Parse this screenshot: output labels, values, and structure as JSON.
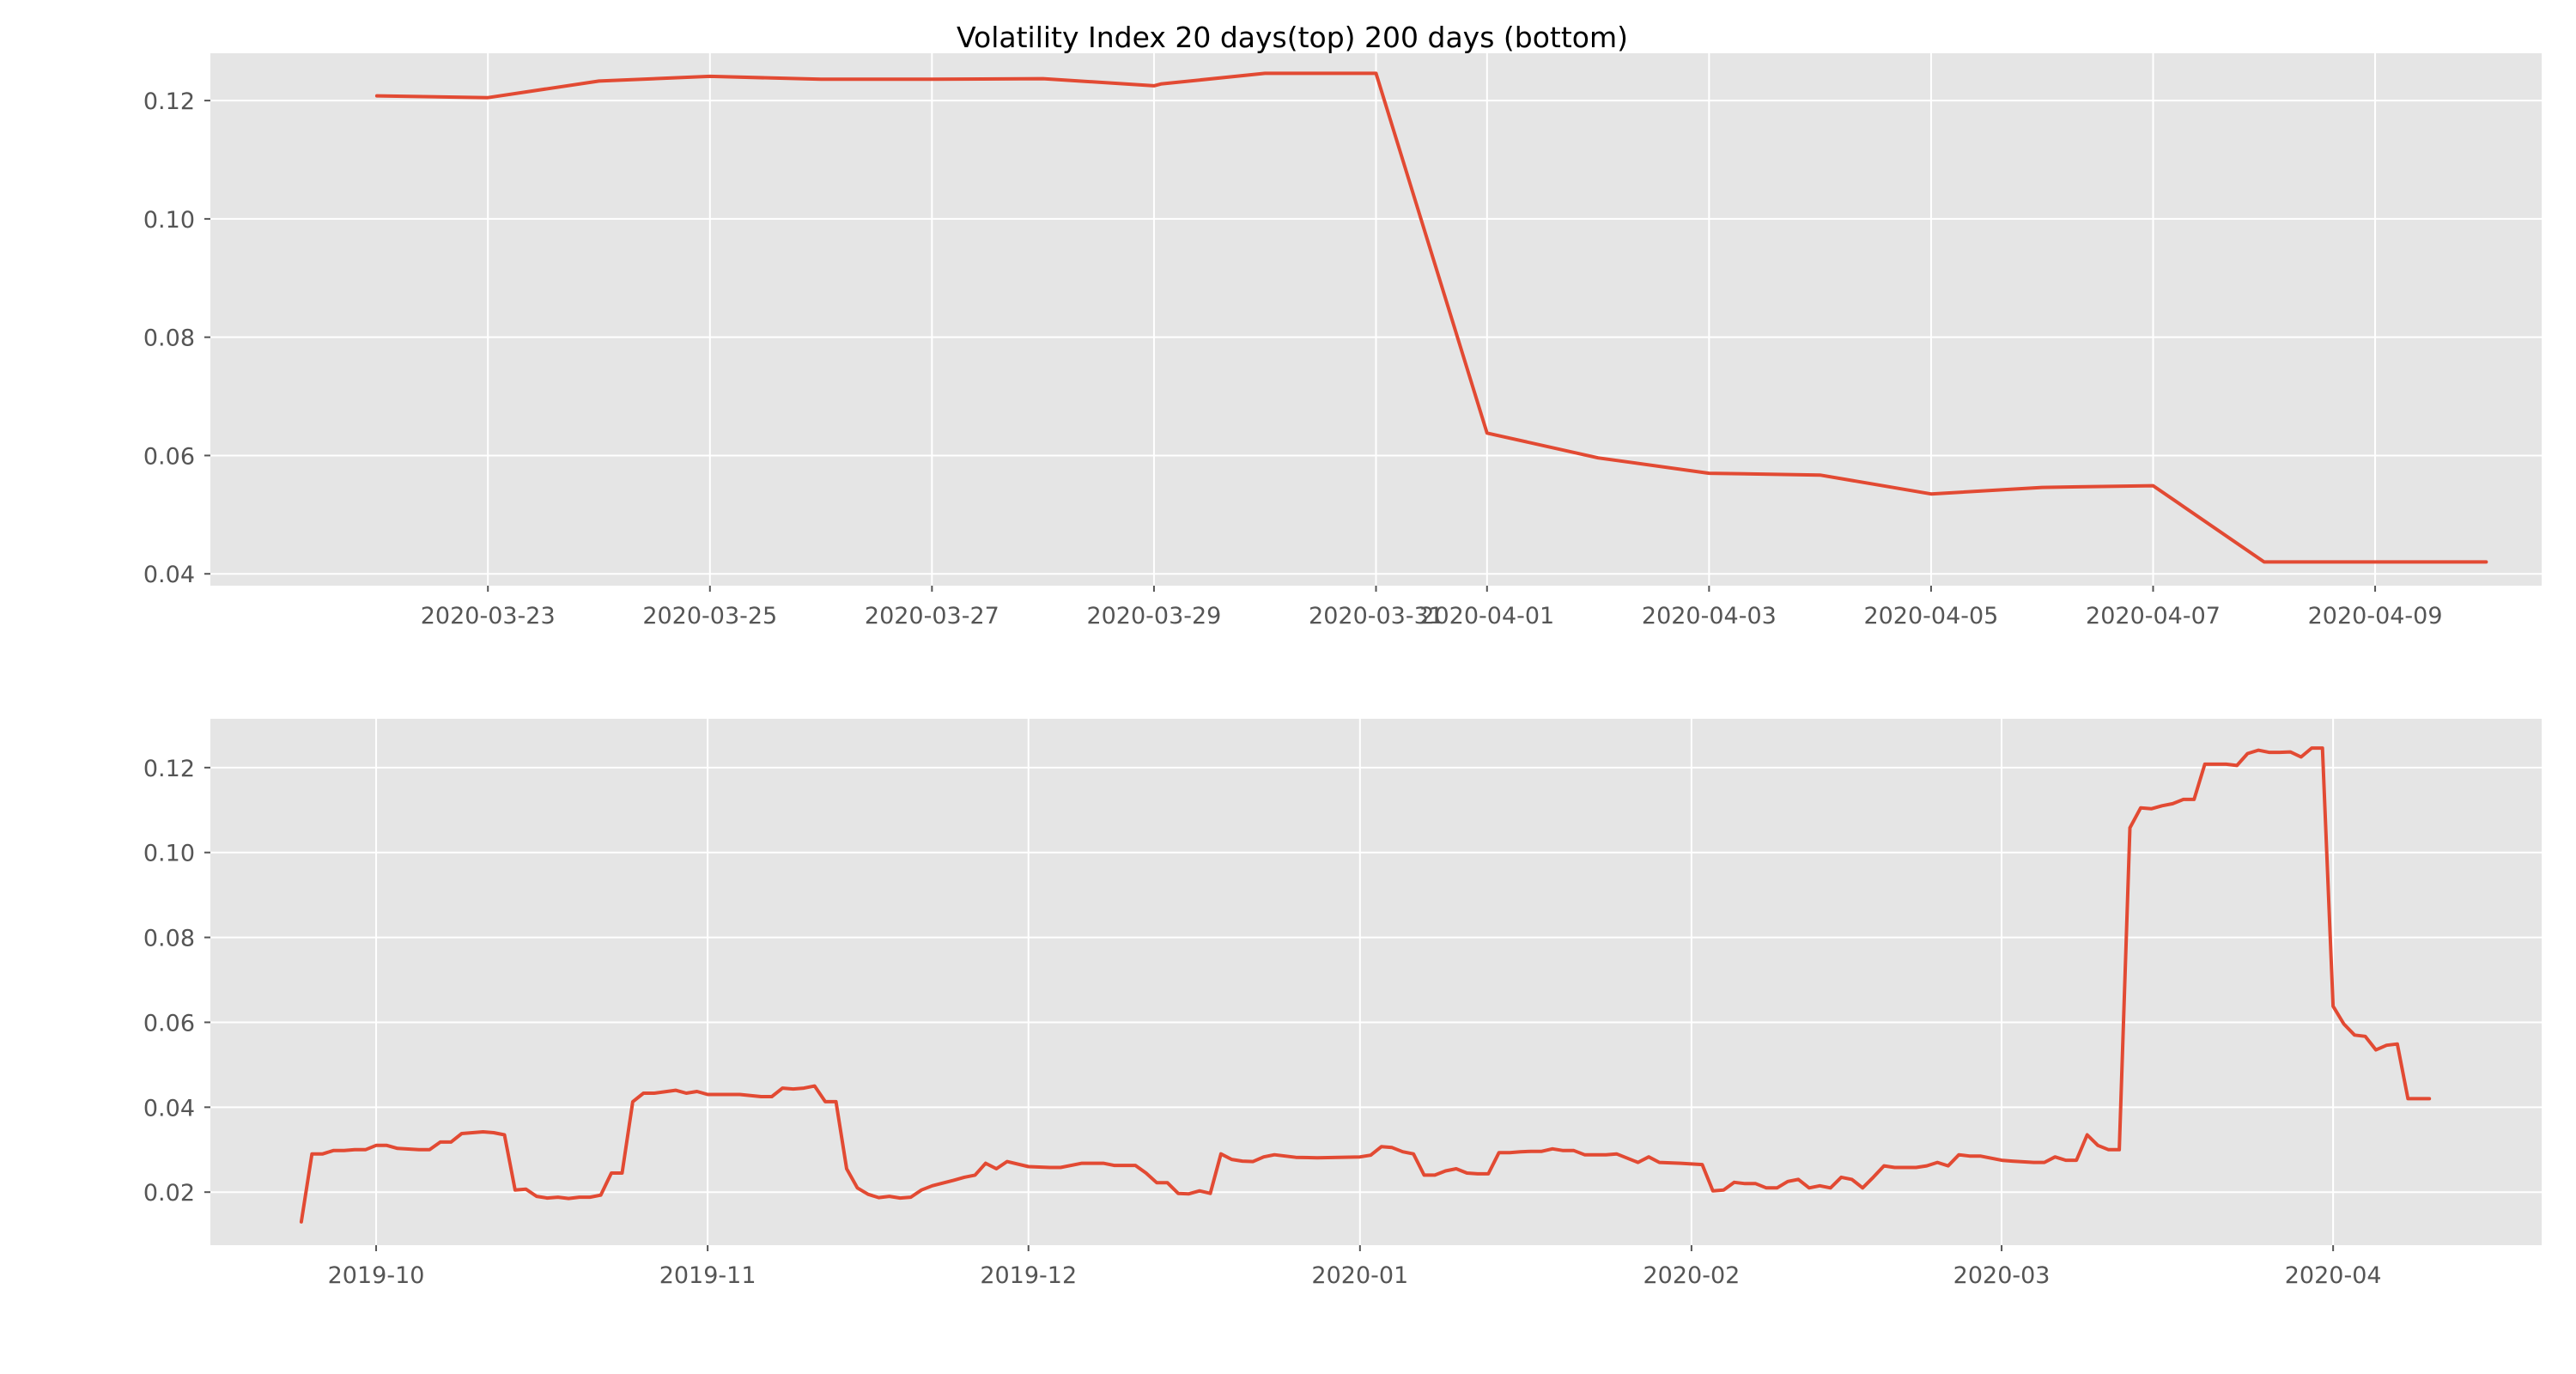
{
  "figure": {
    "title": "Volatility Index 20 days(top) 200 days (bottom)"
  },
  "colors": {
    "panel_background": "#e5e5e5",
    "grid": "#ffffff",
    "line": "#e24a33",
    "tick_text": "#555555"
  },
  "chart_data": [
    {
      "type": "line",
      "title": "",
      "xlabel": "",
      "ylabel": "",
      "grid": true,
      "legend": "none",
      "xlim": [
        "2020-03-20T12:00",
        "2020-04-10T12:00"
      ],
      "ylim": [
        0.038,
        0.128
      ],
      "x_ticks": [
        "2020-03-23",
        "2020-03-25",
        "2020-03-27",
        "2020-03-29",
        "2020-03-31",
        "2020-04-01",
        "2020-04-03",
        "2020-04-05",
        "2020-04-07",
        "2020-04-09"
      ],
      "y_ticks": [
        "0.04",
        "0.06",
        "0.08",
        "0.10",
        "0.12"
      ],
      "series": [
        {
          "x": [
            "2020-03-22",
            "2020-03-23",
            "2020-03-24",
            "2020-03-25",
            "2020-03-26",
            "2020-03-27",
            "2020-03-28",
            "2020-03-29",
            "2020-03-29T01:30",
            "2020-03-30",
            "2020-03-31",
            "2020-04-01",
            "2020-04-02",
            "2020-04-03",
            "2020-04-04",
            "2020-04-05",
            "2020-04-06",
            "2020-04-07",
            "2020-04-08",
            "2020-04-10"
          ],
          "y": [
            0.1208,
            0.1205,
            0.1233,
            0.1241,
            0.1236,
            0.1236,
            0.1237,
            0.1225,
            0.1228,
            0.1246,
            0.1246,
            0.0638,
            0.0596,
            0.057,
            0.0567,
            0.0535,
            0.0546,
            0.0549,
            0.042,
            0.042
          ]
        }
      ]
    },
    {
      "type": "line",
      "title": "",
      "xlabel": "",
      "ylabel": "",
      "grid": true,
      "legend": "none",
      "xlim": [
        "2019-09-15T12:00",
        "2020-04-20T12:00"
      ],
      "ylim": [
        0.0075,
        0.1315
      ],
      "x_ticks": [
        "2019-10",
        "2019-11",
        "2019-12",
        "2020-01",
        "2020-02",
        "2020-03",
        "2020-04"
      ],
      "x_tick_dates": [
        "2019-10-01",
        "2019-11-01",
        "2019-12-01",
        "2020-01-01",
        "2020-02-01",
        "2020-03-01",
        "2020-04-01"
      ],
      "y_ticks": [
        "0.02",
        "0.04",
        "0.06",
        "0.08",
        "0.10",
        "0.12"
      ],
      "series": [
        {
          "x": [
            "2019-09-24",
            "2019-09-25",
            "2019-09-26",
            "2019-09-27",
            "2019-09-28",
            "2019-09-29",
            "2019-09-30",
            "2019-10-01",
            "2019-10-02",
            "2019-10-03",
            "2019-10-05",
            "2019-10-06",
            "2019-10-07",
            "2019-10-08",
            "2019-10-09",
            "2019-10-11",
            "2019-10-12",
            "2019-10-13",
            "2019-10-14",
            "2019-10-15",
            "2019-10-16",
            "2019-10-17",
            "2019-10-18",
            "2019-10-19",
            "2019-10-20",
            "2019-10-21",
            "2019-10-22",
            "2019-10-23",
            "2019-10-24",
            "2019-10-25",
            "2019-10-26",
            "2019-10-27",
            "2019-10-29",
            "2019-10-30",
            "2019-10-31",
            "2019-11-01",
            "2019-11-02",
            "2019-11-04",
            "2019-11-06",
            "2019-11-07",
            "2019-11-08",
            "2019-11-09",
            "2019-11-10",
            "2019-11-11",
            "2019-11-12",
            "2019-11-13",
            "2019-11-14",
            "2019-11-15",
            "2019-11-16",
            "2019-11-17",
            "2019-11-18",
            "2019-11-19",
            "2019-11-20",
            "2019-11-21",
            "2019-11-22",
            "2019-11-24",
            "2019-11-25",
            "2019-11-26",
            "2019-11-27",
            "2019-11-28",
            "2019-11-29",
            "2019-12-01",
            "2019-12-03",
            "2019-12-04",
            "2019-12-06",
            "2019-12-07",
            "2019-12-08",
            "2019-12-09",
            "2019-12-10",
            "2019-12-11",
            "2019-12-12",
            "2019-12-13",
            "2019-12-14",
            "2019-12-15",
            "2019-12-16",
            "2019-12-17",
            "2019-12-18",
            "2019-12-19",
            "2019-12-20",
            "2019-12-21",
            "2019-12-22",
            "2019-12-23",
            "2019-12-24",
            "2019-12-26",
            "2019-12-28",
            "2019-12-30",
            "2020-01-01",
            "2020-01-02",
            "2020-01-03",
            "2020-01-04",
            "2020-01-05",
            "2020-01-06",
            "2020-01-07",
            "2020-01-08",
            "2020-01-09",
            "2020-01-10",
            "2020-01-11",
            "2020-01-12",
            "2020-01-13",
            "2020-01-14",
            "2020-01-15",
            "2020-01-16",
            "2020-01-17",
            "2020-01-18",
            "2020-01-19",
            "2020-01-20",
            "2020-01-21",
            "2020-01-22",
            "2020-01-24",
            "2020-01-25",
            "2020-01-26",
            "2020-01-27",
            "2020-01-28",
            "2020-01-29",
            "2020-01-31",
            "2020-02-02",
            "2020-02-03",
            "2020-02-04",
            "2020-02-05",
            "2020-02-06",
            "2020-02-07",
            "2020-02-08",
            "2020-02-09",
            "2020-02-10",
            "2020-02-11",
            "2020-02-12",
            "2020-02-13",
            "2020-02-14",
            "2020-02-15",
            "2020-02-16",
            "2020-02-17",
            "2020-02-18",
            "2020-02-19",
            "2020-02-20",
            "2020-02-21",
            "2020-02-22",
            "2020-02-23",
            "2020-02-24",
            "2020-02-25",
            "2020-02-26",
            "2020-02-27",
            "2020-02-28",
            "2020-03-01",
            "2020-03-02",
            "2020-03-04",
            "2020-03-05",
            "2020-03-06",
            "2020-03-07",
            "2020-03-08",
            "2020-03-09",
            "2020-03-10",
            "2020-03-11",
            "2020-03-12",
            "2020-03-13",
            "2020-03-14",
            "2020-03-15",
            "2020-03-16",
            "2020-03-17",
            "2020-03-18",
            "2020-03-19",
            "2020-03-20",
            "2020-03-22",
            "2020-03-23",
            "2020-03-24",
            "2020-03-25",
            "2020-03-26",
            "2020-03-27",
            "2020-03-28",
            "2020-03-29",
            "2020-03-30",
            "2020-03-31",
            "2020-04-01",
            "2020-04-02",
            "2020-04-03",
            "2020-04-04",
            "2020-04-05",
            "2020-04-06",
            "2020-04-07",
            "2020-04-08",
            "2020-04-10"
          ],
          "y": [
            0.013,
            0.029,
            0.029,
            0.0298,
            0.0298,
            0.03,
            0.03,
            0.031,
            0.031,
            0.0303,
            0.03,
            0.03,
            0.0318,
            0.0318,
            0.0338,
            0.0342,
            0.034,
            0.0335,
            0.0205,
            0.0207,
            0.019,
            0.0186,
            0.0188,
            0.0185,
            0.0188,
            0.0188,
            0.0193,
            0.0245,
            0.0245,
            0.0413,
            0.0433,
            0.0433,
            0.044,
            0.0433,
            0.0437,
            0.043,
            0.043,
            0.043,
            0.0425,
            0.0425,
            0.0445,
            0.0443,
            0.0445,
            0.045,
            0.0413,
            0.0413,
            0.0255,
            0.021,
            0.0195,
            0.0187,
            0.019,
            0.0186,
            0.0188,
            0.0205,
            0.0215,
            0.0228,
            0.0235,
            0.024,
            0.0268,
            0.0255,
            0.0272,
            0.026,
            0.0258,
            0.0258,
            0.0268,
            0.0268,
            0.0268,
            0.0263,
            0.0263,
            0.0263,
            0.0245,
            0.0222,
            0.0222,
            0.0197,
            0.0196,
            0.0203,
            0.0197,
            0.029,
            0.0277,
            0.0273,
            0.0272,
            0.0283,
            0.0288,
            0.0282,
            0.0281,
            0.0282,
            0.0283,
            0.0287,
            0.0307,
            0.0305,
            0.0295,
            0.029,
            0.024,
            0.024,
            0.025,
            0.0255,
            0.0245,
            0.0243,
            0.0243,
            0.0293,
            0.0293,
            0.0295,
            0.0296,
            0.0296,
            0.0302,
            0.0298,
            0.0298,
            0.0288,
            0.0288,
            0.029,
            0.028,
            0.027,
            0.0283,
            0.027,
            0.0268,
            0.0265,
            0.0203,
            0.0205,
            0.0223,
            0.022,
            0.022,
            0.021,
            0.021,
            0.0225,
            0.023,
            0.021,
            0.0215,
            0.021,
            0.0235,
            0.023,
            0.021,
            0.0235,
            0.0262,
            0.0258,
            0.0258,
            0.0258,
            0.0262,
            0.027,
            0.0262,
            0.0288,
            0.0285,
            0.0285,
            0.0275,
            0.0273,
            0.027,
            0.027,
            0.0283,
            0.0275,
            0.0275,
            0.0335,
            0.031,
            0.03,
            0.03,
            0.1058,
            0.1105,
            0.1103,
            0.111,
            0.1115,
            0.1125,
            0.1125,
            0.1208,
            0.1208,
            0.1205,
            0.1233,
            0.1241,
            0.1236,
            0.1236,
            0.1237,
            0.1225,
            0.1246,
            0.1246,
            0.0638,
            0.0596,
            0.057,
            0.0567,
            0.0535,
            0.0546,
            0.0549,
            0.042,
            0.042
          ]
        }
      ]
    }
  ]
}
